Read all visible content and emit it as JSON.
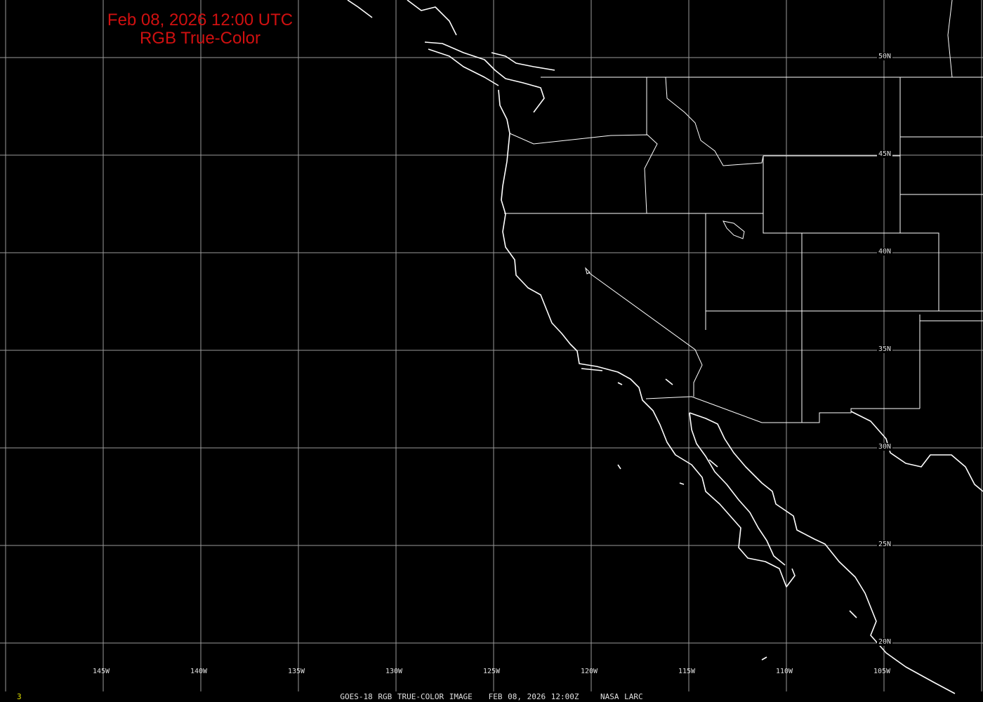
{
  "title": {
    "line1": "Feb 08, 2026 12:00 UTC",
    "line2": "RGB True-Color",
    "color": "#d01010"
  },
  "longitude_labels": [
    "145W",
    "140W",
    "135W",
    "130W",
    "125W",
    "120W",
    "115W",
    "110W",
    "105W"
  ],
  "latitude_labels": [
    "50N",
    "45N",
    "40N",
    "35N",
    "30N",
    "25N",
    "20N"
  ],
  "footer": {
    "frame_number": "3",
    "caption": "GOES-18 RGB TRUE-COLOR IMAGE   FEB 08, 2026 12:00Z    NASA LARC"
  },
  "colors": {
    "background": "#000000",
    "grid": "#9a9a9a",
    "coastline": "#ffffff",
    "frame_number": "#e0e000"
  }
}
